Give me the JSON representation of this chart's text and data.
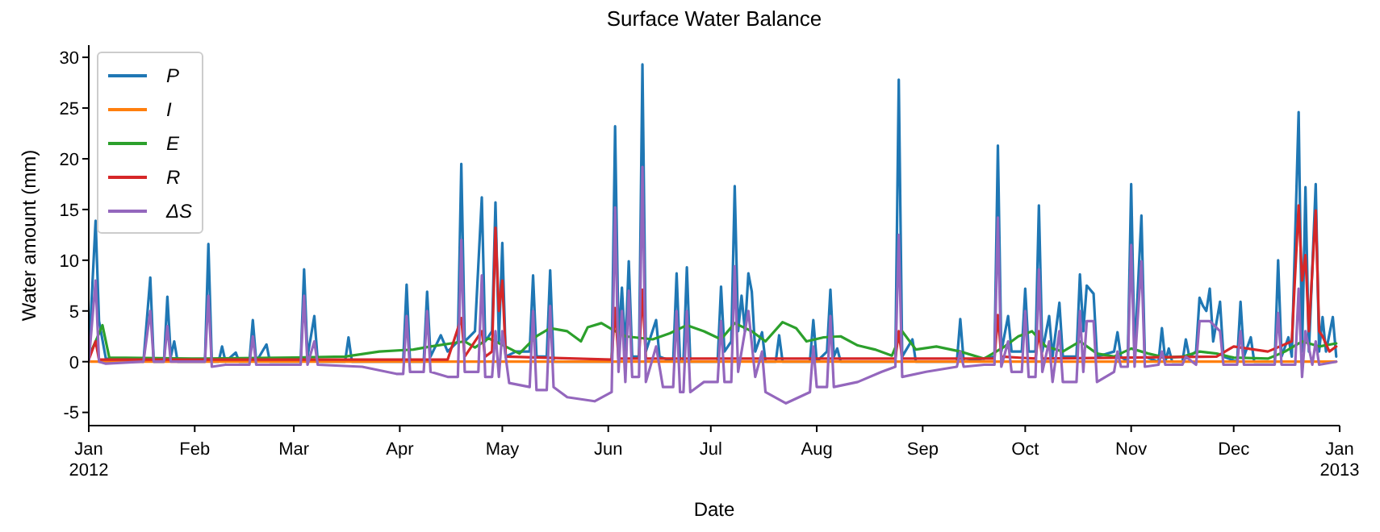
{
  "chart_data": {
    "type": "line",
    "title": "Surface Water Balance",
    "xlabel": "Date",
    "ylabel": "Water amount (mm)",
    "xlim": [
      "2012-01-01",
      "2013-01-01"
    ],
    "ylim": [
      -6.3,
      31.2
    ],
    "xticks": [
      {
        "value": "2012-01-01",
        "label": "Jan\n2012"
      },
      {
        "value": "2012-02-01",
        "label": "Feb"
      },
      {
        "value": "2012-03-01",
        "label": "Mar"
      },
      {
        "value": "2012-04-01",
        "label": "Apr"
      },
      {
        "value": "2012-05-01",
        "label": "May"
      },
      {
        "value": "2012-06-01",
        "label": "Jun"
      },
      {
        "value": "2012-07-01",
        "label": "Jul"
      },
      {
        "value": "2012-08-01",
        "label": "Aug"
      },
      {
        "value": "2012-09-01",
        "label": "Sep"
      },
      {
        "value": "2012-10-01",
        "label": "Oct"
      },
      {
        "value": "2012-11-01",
        "label": "Nov"
      },
      {
        "value": "2012-12-01",
        "label": "Dec"
      },
      {
        "value": "2013-01-01",
        "label": "Jan\n2013"
      }
    ],
    "yticks": [
      -5,
      0,
      5,
      10,
      15,
      20,
      25,
      30
    ],
    "legend": "top left",
    "series": [
      {
        "name": "P",
        "color": "#1f77b4",
        "x": [
          "2012-01-01",
          "2012-01-03",
          "2012-01-04",
          "2012-01-06",
          "2012-01-17",
          "2012-01-19",
          "2012-01-20",
          "2012-01-23",
          "2012-01-24",
          "2012-01-25",
          "2012-01-26",
          "2012-01-27",
          "2012-02-04",
          "2012-02-05",
          "2012-02-06",
          "2012-02-08",
          "2012-02-09",
          "2012-02-10",
          "2012-02-13",
          "2012-02-14",
          "2012-02-17",
          "2012-02-18",
          "2012-02-19",
          "2012-02-22",
          "2012-02-23",
          "2012-03-03",
          "2012-03-04",
          "2012-03-05",
          "2012-03-07",
          "2012-03-08",
          "2012-03-16",
          "2012-03-17",
          "2012-03-18",
          "2012-04-02",
          "2012-04-03",
          "2012-04-04",
          "2012-04-08",
          "2012-04-09",
          "2012-04-10",
          "2012-04-13",
          "2012-04-15",
          "2012-04-18",
          "2012-04-19",
          "2012-04-20",
          "2012-04-23",
          "2012-04-25",
          "2012-04-26",
          "2012-04-28",
          "2012-04-29",
          "2012-04-30",
          "2012-05-01",
          "2012-05-02",
          "2012-05-05",
          "2012-05-09",
          "2012-05-10",
          "2012-05-11",
          "2012-05-14",
          "2012-05-15",
          "2012-05-16",
          "2012-06-02",
          "2012-06-03",
          "2012-06-04",
          "2012-06-05",
          "2012-06-06",
          "2012-06-07",
          "2012-06-08",
          "2012-06-10",
          "2012-06-11",
          "2012-06-12",
          "2012-06-15",
          "2012-06-16",
          "2012-06-20",
          "2012-06-21",
          "2012-06-22",
          "2012-06-23",
          "2012-06-24",
          "2012-06-25",
          "2012-07-03",
          "2012-07-04",
          "2012-07-05",
          "2012-07-07",
          "2012-07-08",
          "2012-07-09",
          "2012-07-10",
          "2012-07-11",
          "2012-07-12",
          "2012-07-13",
          "2012-07-14",
          "2012-07-16",
          "2012-07-17",
          "2012-07-20",
          "2012-07-21",
          "2012-07-22",
          "2012-07-30",
          "2012-07-31",
          "2012-08-01",
          "2012-08-04",
          "2012-08-05",
          "2012-08-06",
          "2012-08-07",
          "2012-08-08",
          "2012-08-24",
          "2012-08-25",
          "2012-08-26",
          "2012-08-29",
          "2012-08-30",
          "2012-09-11",
          "2012-09-12",
          "2012-09-13",
          "2012-09-22",
          "2012-09-23",
          "2012-09-24",
          "2012-09-26",
          "2012-09-27",
          "2012-09-30",
          "2012-10-01",
          "2012-10-02",
          "2012-10-04",
          "2012-10-05",
          "2012-10-06",
          "2012-10-08",
          "2012-10-09",
          "2012-10-11",
          "2012-10-12",
          "2012-10-16",
          "2012-10-17",
          "2012-10-18",
          "2012-10-19",
          "2012-10-21",
          "2012-10-22",
          "2012-10-27",
          "2012-10-28",
          "2012-10-29",
          "2012-10-31",
          "2012-11-01",
          "2012-11-02",
          "2012-11-04",
          "2012-11-05",
          "2012-11-09",
          "2012-11-10",
          "2012-11-11",
          "2012-11-12",
          "2012-11-13",
          "2012-11-16",
          "2012-11-17",
          "2012-11-18",
          "2012-11-20",
          "2012-11-21",
          "2012-11-22",
          "2012-11-23",
          "2012-11-24",
          "2012-11-25",
          "2012-11-27",
          "2012-11-28",
          "2012-12-02",
          "2012-12-03",
          "2012-12-04",
          "2012-12-06",
          "2012-12-07",
          "2012-12-13",
          "2012-12-14",
          "2012-12-15",
          "2012-12-17",
          "2012-12-18",
          "2012-12-20",
          "2012-12-21",
          "2012-12-22",
          "2012-12-23",
          "2012-12-25",
          "2012-12-26",
          "2012-12-27",
          "2012-12-28",
          "2012-12-30",
          "2012-12-31"
        ],
        "values": [
          0.5,
          13.9,
          4,
          0.3,
          0,
          8.3,
          0,
          0,
          6.4,
          0.5,
          2.0,
          0,
          0,
          11.6,
          0,
          0,
          1.5,
          0,
          0.9,
          0,
          0,
          4.1,
          0,
          1.7,
          0,
          0,
          9.1,
          0.5,
          4.5,
          0,
          0,
          2.4,
          0,
          0,
          7.6,
          0,
          0,
          6.9,
          0.5,
          2.6,
          1,
          2,
          19.5,
          2,
          3,
          16.2,
          2,
          3,
          15.7,
          2,
          11.7,
          0.5,
          1,
          1,
          8.5,
          0.5,
          0.5,
          9.0,
          0,
          0,
          23.2,
          2,
          7.3,
          1,
          9.9,
          0.5,
          0.5,
          29.3,
          1,
          4.1,
          0.5,
          0,
          8.7,
          0,
          0,
          9.3,
          0,
          0,
          7.4,
          1,
          2,
          17.3,
          3,
          6.5,
          3,
          8.7,
          6.9,
          1,
          2.9,
          0,
          0,
          2.6,
          0,
          0,
          4.1,
          0,
          1,
          7.1,
          0.5,
          1.3,
          0,
          0,
          27.8,
          0.5,
          2.2,
          0,
          0,
          4.2,
          0,
          0.5,
          21.3,
          1,
          4.5,
          1,
          1,
          7.2,
          1,
          1,
          15.4,
          1,
          4.5,
          0.5,
          5.8,
          0.5,
          0.5,
          8.6,
          3,
          7.5,
          6.7,
          0.5,
          1,
          2.9,
          0.5,
          0,
          17.5,
          0.5,
          14.4,
          0.5,
          0,
          3.3,
          0,
          1.3,
          0,
          0,
          2.2,
          0.5,
          1,
          6.3,
          5.5,
          5,
          7.2,
          2,
          5.9,
          0.5,
          0,
          5.9,
          0.5,
          2.4,
          0,
          0,
          10.0,
          0.5,
          2.4,
          0.5,
          24.6,
          1,
          17.2,
          1,
          17.5,
          1,
          4.4,
          1,
          4.4,
          0.5
        ]
      },
      {
        "name": "I",
        "color": "#ff7f0e",
        "x": [
          "2012-01-01",
          "2012-12-31"
        ],
        "values": [
          0,
          0
        ]
      },
      {
        "name": "E",
        "color": "#2ca02c",
        "x": [
          "2012-01-01",
          "2012-01-03",
          "2012-01-05",
          "2012-01-07",
          "2012-01-31",
          "2012-03-01",
          "2012-03-16",
          "2012-03-26",
          "2012-04-05",
          "2012-04-10",
          "2012-04-20",
          "2012-04-23",
          "2012-04-27",
          "2012-05-02",
          "2012-05-06",
          "2012-05-11",
          "2012-05-15",
          "2012-05-20",
          "2012-05-24",
          "2012-05-26",
          "2012-05-30",
          "2012-06-02",
          "2012-06-06",
          "2012-06-14",
          "2012-06-19",
          "2012-06-24",
          "2012-06-29",
          "2012-07-04",
          "2012-07-08",
          "2012-07-13",
          "2012-07-17",
          "2012-07-22",
          "2012-07-26",
          "2012-07-29",
          "2012-08-03",
          "2012-08-08",
          "2012-08-13",
          "2012-08-18",
          "2012-08-23",
          "2012-08-26",
          "2012-08-30",
          "2012-09-05",
          "2012-09-12",
          "2012-09-19",
          "2012-09-25",
          "2012-09-29",
          "2012-10-03",
          "2012-10-07",
          "2012-10-12",
          "2012-10-17",
          "2012-10-22",
          "2012-10-27",
          "2012-11-01",
          "2012-11-06",
          "2012-11-11",
          "2012-11-16",
          "2012-11-21",
          "2012-11-26",
          "2012-12-01",
          "2012-12-11",
          "2012-12-16",
          "2012-12-21",
          "2012-12-26",
          "2012-12-31"
        ],
        "values": [
          0.5,
          2,
          3.6,
          0.4,
          0.3,
          0.4,
          0.5,
          1.0,
          1.2,
          1.5,
          2.0,
          1.4,
          2.3,
          1.5,
          0.8,
          2.5,
          3.3,
          3.0,
          2.0,
          3.4,
          3.8,
          3.2,
          2.5,
          2.2,
          2.8,
          3.6,
          3.0,
          2.2,
          3.8,
          3.0,
          2.0,
          3.9,
          3.3,
          2.0,
          2.4,
          2.5,
          1.6,
          1.2,
          0.6,
          3.0,
          1.2,
          1.5,
          1.0,
          0.3,
          1.5,
          2.5,
          3.0,
          1.5,
          1.0,
          2.0,
          0.8,
          0.5,
          1.3,
          0.8,
          0.4,
          0.5,
          1.0,
          0.8,
          0.4,
          0.3,
          1.0,
          2.0,
          1.5,
          1.8
        ]
      },
      {
        "name": "R",
        "color": "#d62728",
        "x": [
          "2012-01-01",
          "2012-01-03",
          "2012-01-04",
          "2012-04-15",
          "2012-04-19",
          "2012-04-20",
          "2012-04-25",
          "2012-04-26",
          "2012-04-28",
          "2012-04-29",
          "2012-04-30",
          "2012-05-01",
          "2012-05-02",
          "2012-06-02",
          "2012-06-03",
          "2012-06-04",
          "2012-06-10",
          "2012-06-11",
          "2012-06-12",
          "2012-08-24",
          "2012-08-25",
          "2012-08-26",
          "2012-09-22",
          "2012-09-23",
          "2012-09-24",
          "2012-10-04",
          "2012-10-05",
          "2012-10-06",
          "2012-11-26",
          "2012-12-01",
          "2012-12-11",
          "2012-12-18",
          "2012-12-20",
          "2012-12-21",
          "2012-12-22",
          "2012-12-23",
          "2012-12-25",
          "2012-12-26",
          "2012-12-27",
          "2012-12-29",
          "2012-12-31"
        ],
        "values": [
          0.2,
          2,
          0.2,
          0.2,
          4.3,
          0.5,
          3,
          0.5,
          1,
          13.2,
          5,
          8,
          0.5,
          0.2,
          5.3,
          0.3,
          0.3,
          7.1,
          0.3,
          0.3,
          3.0,
          0.3,
          0.3,
          4.6,
          0.5,
          0.3,
          3.0,
          0.3,
          0.5,
          1.5,
          1.0,
          2,
          15.4,
          8,
          10.5,
          3,
          14.9,
          3,
          2.5,
          1,
          1.5
        ]
      },
      {
        "name": "ΔS",
        "color": "#9467bd",
        "x": [
          "2012-01-01",
          "2012-01-03",
          "2012-01-04",
          "2012-01-06",
          "2012-01-17",
          "2012-01-19",
          "2012-01-20",
          "2012-01-23",
          "2012-01-24",
          "2012-01-25",
          "2012-02-04",
          "2012-02-05",
          "2012-02-06",
          "2012-02-10",
          "2012-02-17",
          "2012-02-18",
          "2012-02-19",
          "2012-03-03",
          "2012-03-04",
          "2012-03-05",
          "2012-03-07",
          "2012-03-08",
          "2012-03-21",
          "2012-03-31",
          "2012-04-02",
          "2012-04-03",
          "2012-04-04",
          "2012-04-08",
          "2012-04-09",
          "2012-04-10",
          "2012-04-15",
          "2012-04-18",
          "2012-04-19",
          "2012-04-20",
          "2012-04-24",
          "2012-04-25",
          "2012-04-26",
          "2012-04-28",
          "2012-04-29",
          "2012-04-30",
          "2012-05-01",
          "2012-05-03",
          "2012-05-09",
          "2012-05-10",
          "2012-05-11",
          "2012-05-14",
          "2012-05-15",
          "2012-05-16",
          "2012-05-20",
          "2012-05-28",
          "2012-06-02",
          "2012-06-03",
          "2012-06-04",
          "2012-06-05",
          "2012-06-06",
          "2012-06-07",
          "2012-06-08",
          "2012-06-10",
          "2012-06-11",
          "2012-06-12",
          "2012-06-15",
          "2012-06-17",
          "2012-06-20",
          "2012-06-21",
          "2012-06-22",
          "2012-06-23",
          "2012-06-24",
          "2012-06-25",
          "2012-06-29",
          "2012-07-03",
          "2012-07-04",
          "2012-07-05",
          "2012-07-07",
          "2012-07-08",
          "2012-07-09",
          "2012-07-12",
          "2012-07-14",
          "2012-07-16",
          "2012-07-17",
          "2012-07-23",
          "2012-07-30",
          "2012-07-31",
          "2012-08-01",
          "2012-08-04",
          "2012-08-05",
          "2012-08-06",
          "2012-08-13",
          "2012-08-20",
          "2012-08-24",
          "2012-08-25",
          "2012-08-26",
          "2012-09-02",
          "2012-09-11",
          "2012-09-12",
          "2012-09-13",
          "2012-09-19",
          "2012-09-22",
          "2012-09-23",
          "2012-09-24",
          "2012-09-26",
          "2012-09-27",
          "2012-09-30",
          "2012-10-01",
          "2012-10-02",
          "2012-10-04",
          "2012-10-05",
          "2012-10-06",
          "2012-10-08",
          "2012-10-09",
          "2012-10-11",
          "2012-10-12",
          "2012-10-16",
          "2012-10-17",
          "2012-10-18",
          "2012-10-19",
          "2012-10-21",
          "2012-10-22",
          "2012-10-27",
          "2012-10-28",
          "2012-10-29",
          "2012-10-31",
          "2012-11-01",
          "2012-11-02",
          "2012-11-04",
          "2012-11-05",
          "2012-11-09",
          "2012-11-10",
          "2012-11-11",
          "2012-11-16",
          "2012-11-17",
          "2012-11-20",
          "2012-11-21",
          "2012-11-24",
          "2012-11-27",
          "2012-11-28",
          "2012-12-02",
          "2012-12-03",
          "2012-12-04",
          "2012-12-13",
          "2012-12-14",
          "2012-12-15",
          "2012-12-19",
          "2012-12-20",
          "2012-12-21",
          "2012-12-22",
          "2012-12-24",
          "2012-12-25",
          "2012-12-26",
          "2012-12-31"
        ],
        "values": [
          0,
          8,
          0,
          -0.2,
          0,
          5,
          0,
          0,
          3.5,
          0,
          0,
          6.5,
          -0.5,
          -0.3,
          -0.3,
          2.5,
          -0.3,
          -0.3,
          6.5,
          -0.3,
          2,
          -0.3,
          -0.5,
          -1.2,
          -1.2,
          4.5,
          -1,
          -1,
          5,
          -1,
          -1.5,
          -1.5,
          12.0,
          -1,
          -1,
          8.5,
          -1.5,
          -1.5,
          3,
          -1.5,
          3,
          -2.1,
          -2.5,
          5,
          -2.8,
          -2.8,
          5.5,
          -2.5,
          -3.5,
          -3.9,
          -3.0,
          15.2,
          -1,
          5,
          -2,
          7,
          -1.5,
          -1.5,
          19.2,
          -2,
          1.5,
          -2.5,
          -2.5,
          5,
          -3,
          -3,
          5,
          -3,
          -2,
          -2,
          4,
          -2,
          -2,
          9.4,
          -1,
          5,
          -1.5,
          1,
          -3,
          -4.1,
          -3,
          1.5,
          -2.5,
          -2.5,
          4.5,
          -2.5,
          -2,
          -1,
          -0.5,
          12.5,
          -1.5,
          -1,
          -0.5,
          1,
          -0.5,
          -0.3,
          -0.3,
          14.2,
          -0.5,
          2,
          -1,
          -1,
          5,
          -1.5,
          -1.5,
          9.1,
          -1,
          2,
          -2,
          3,
          -2,
          -2,
          5,
          -1,
          4,
          4,
          -2,
          -1,
          1,
          -0.5,
          -0.5,
          11.5,
          -0.5,
          9.9,
          -0.5,
          -0.3,
          1,
          -0.3,
          -0.3,
          0.5,
          -0.3,
          4,
          4,
          3,
          -0.3,
          -0.3,
          3,
          -0.3,
          -0.3,
          4.8,
          -0.3,
          -0.3,
          7.2,
          -1.5,
          3,
          -0.3,
          2,
          -0.3,
          0
        ]
      }
    ]
  }
}
